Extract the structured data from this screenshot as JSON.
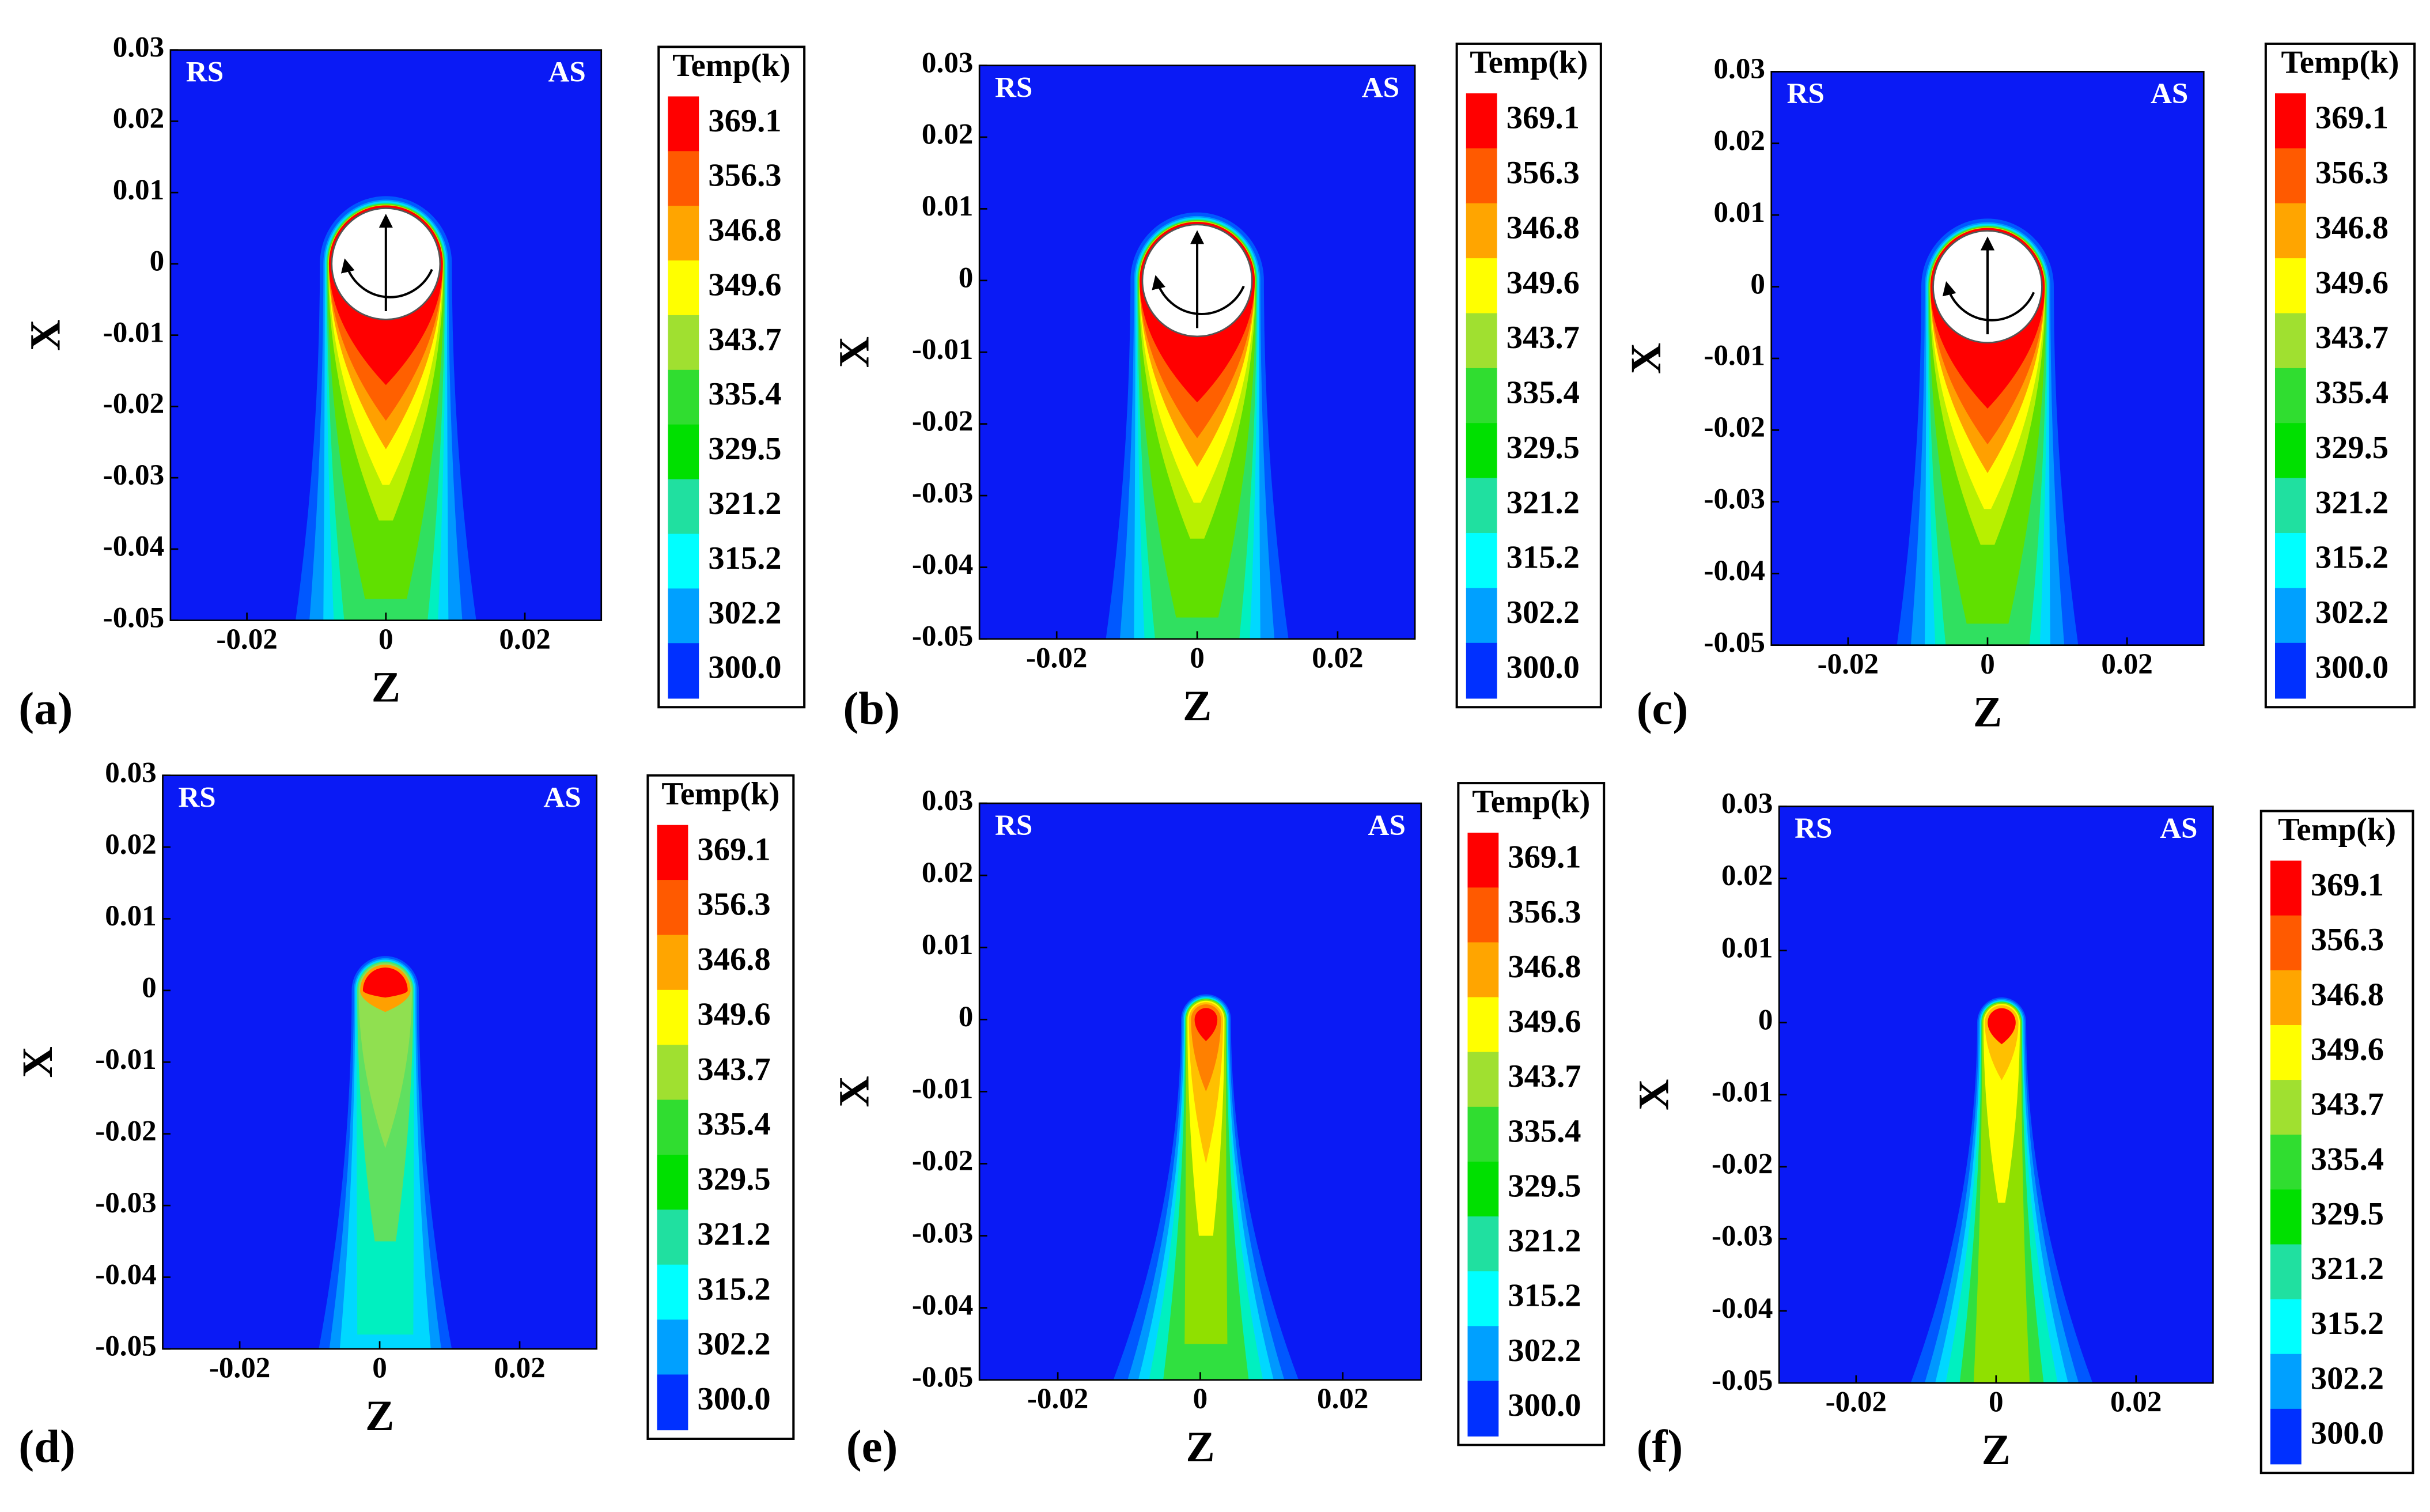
{
  "chart_data": [
    {
      "type": "contour",
      "label": "(a)",
      "xlabel": "Z",
      "ylabel": "X",
      "annotations": [
        "RS",
        "AS"
      ],
      "xlim": [
        -0.031,
        0.031
      ],
      "ylim": [
        -0.05,
        0.03
      ],
      "xticks": [
        -0.02,
        0,
        0.02
      ],
      "yticks": [
        0.03,
        0.02,
        0.01,
        0,
        -0.01,
        -0.02,
        -0.03,
        -0.04,
        -0.05
      ],
      "colorbar": {
        "title": "Temp(k)",
        "levels": [
          369.1,
          356.3,
          346.8,
          349.6,
          343.7,
          335.4,
          329.5,
          321.2,
          315.2,
          302.2,
          {
            "value": 300,
            "label": "300.0"
          }
        ],
        "colors": [
          "#ff0000",
          "#ff5a00",
          "#ffa500",
          "#ffff00",
          "#a0e030",
          "#30dd30",
          "#00e000",
          "#20e0a0",
          "#00ffff",
          "#00a0ff",
          "#0030ff"
        ]
      }
    },
    {
      "type": "contour",
      "label": "(b)",
      "xlabel": "Z",
      "ylabel": "X",
      "annotations": [
        "RS",
        "AS"
      ],
      "xlim": [
        -0.031,
        0.031
      ],
      "ylim": [
        -0.05,
        0.03
      ],
      "xticks": [
        -0.02,
        0,
        0.02
      ],
      "yticks": [
        0.03,
        0.02,
        0.01,
        0,
        -0.01,
        -0.02,
        -0.03,
        -0.04,
        -0.05
      ],
      "colorbar": {
        "title": "Temp(k)",
        "levels": [
          369.1,
          356.3,
          346.8,
          349.6,
          343.7,
          335.4,
          329.5,
          321.2,
          315.2,
          302.2,
          {
            "value": 300,
            "label": "300.0"
          }
        ],
        "colors": [
          "#ff0000",
          "#ff5a00",
          "#ffa500",
          "#ffff00",
          "#a0e030",
          "#30dd30",
          "#00e000",
          "#20e0a0",
          "#00ffff",
          "#00a0ff",
          "#0030ff"
        ]
      }
    },
    {
      "type": "contour",
      "label": "(c)",
      "xlabel": "Z",
      "ylabel": "X",
      "annotations": [
        "RS",
        "AS"
      ],
      "xlim": [
        -0.031,
        0.031
      ],
      "ylim": [
        -0.05,
        0.03
      ],
      "xticks": [
        -0.02,
        0,
        0.02
      ],
      "yticks": [
        0.03,
        0.02,
        0.01,
        0,
        -0.01,
        -0.02,
        -0.03,
        -0.04,
        -0.05
      ],
      "colorbar": {
        "title": "Temp(k)",
        "levels": [
          369.1,
          356.3,
          346.8,
          349.6,
          343.7,
          335.4,
          329.5,
          321.2,
          315.2,
          302.2,
          {
            "value": 300,
            "label": "300.0"
          }
        ],
        "colors": [
          "#ff0000",
          "#ff5a00",
          "#ffa500",
          "#ffff00",
          "#a0e030",
          "#30dd30",
          "#00e000",
          "#20e0a0",
          "#00ffff",
          "#00a0ff",
          "#0030ff"
        ]
      }
    },
    {
      "type": "contour",
      "label": "(d)",
      "xlabel": "Z",
      "ylabel": "X",
      "annotations": [
        "RS",
        "AS"
      ],
      "xlim": [
        -0.031,
        0.031
      ],
      "ylim": [
        -0.05,
        0.03
      ],
      "xticks": [
        -0.02,
        0,
        0.02
      ],
      "yticks": [
        0.03,
        0.02,
        0.01,
        0,
        -0.01,
        -0.02,
        -0.03,
        -0.04,
        -0.05
      ],
      "colorbar": {
        "title": "Temp(k)",
        "levels": [
          369.1,
          356.3,
          346.8,
          349.6,
          343.7,
          335.4,
          329.5,
          321.2,
          315.2,
          302.2,
          {
            "value": 300,
            "label": "300.0"
          }
        ],
        "colors": [
          "#ff0000",
          "#ff5a00",
          "#ffa500",
          "#ffff00",
          "#a0e030",
          "#30dd30",
          "#00e000",
          "#20e0a0",
          "#00ffff",
          "#00a0ff",
          "#0030ff"
        ]
      }
    },
    {
      "type": "contour",
      "label": "(e)",
      "xlabel": "Z",
      "ylabel": "X",
      "annotations": [
        "RS",
        "AS"
      ],
      "xlim": [
        -0.031,
        0.031
      ],
      "ylim": [
        -0.05,
        0.03
      ],
      "xticks": [
        -0.02,
        0,
        0.02
      ],
      "yticks": [
        0.03,
        0.02,
        0.01,
        0,
        -0.01,
        -0.02,
        -0.03,
        -0.04,
        -0.05
      ],
      "colorbar": {
        "title": "Temp(k)",
        "levels": [
          369.1,
          356.3,
          346.8,
          349.6,
          343.7,
          335.4,
          329.5,
          321.2,
          315.2,
          302.2,
          {
            "value": 300,
            "label": "300.0"
          }
        ],
        "colors": [
          "#ff0000",
          "#ff5a00",
          "#ffa500",
          "#ffff00",
          "#a0e030",
          "#30dd30",
          "#00e000",
          "#20e0a0",
          "#00ffff",
          "#00a0ff",
          "#0030ff"
        ]
      }
    },
    {
      "type": "contour",
      "label": "(f)",
      "xlabel": "Z",
      "ylabel": "X",
      "annotations": [
        "RS",
        "AS"
      ],
      "xlim": [
        -0.031,
        0.031
      ],
      "ylim": [
        -0.05,
        0.03
      ],
      "xticks": [
        -0.02,
        0,
        0.02
      ],
      "yticks": [
        0.03,
        0.02,
        0.01,
        0,
        -0.01,
        -0.02,
        -0.03,
        -0.04,
        -0.05
      ],
      "colorbar": {
        "title": "Temp(k)",
        "levels": [
          369.1,
          356.3,
          346.8,
          349.6,
          343.7,
          335.4,
          329.5,
          321.2,
          315.2,
          302.2,
          {
            "value": 300,
            "label": "300.0"
          }
        ],
        "colors": [
          "#ff0000",
          "#ff5a00",
          "#ffa500",
          "#ffff00",
          "#a0e030",
          "#30dd30",
          "#00e000",
          "#20e0a0",
          "#00ffff",
          "#00a0ff",
          "#0030ff"
        ]
      }
    }
  ]
}
